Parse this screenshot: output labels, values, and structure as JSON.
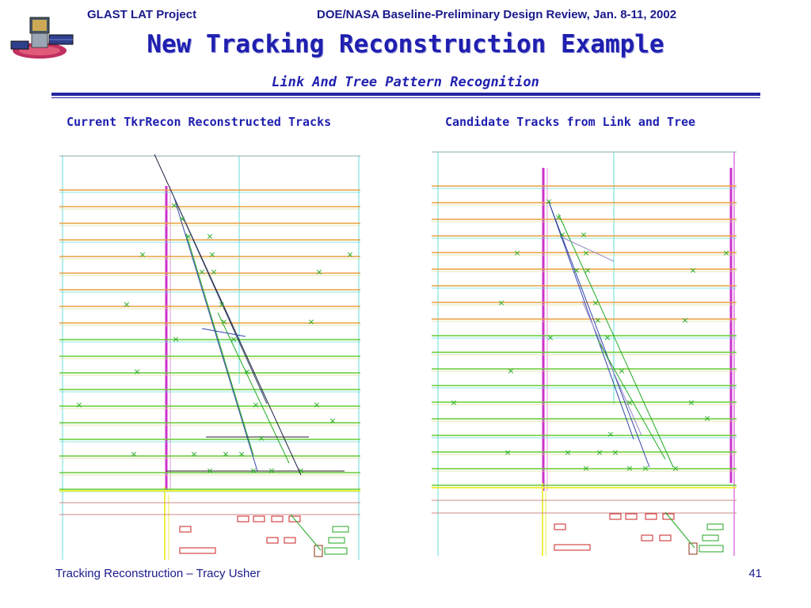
{
  "header": {
    "project": "GLAST LAT Project",
    "review": "DOE/NASA Baseline-Preliminary Design Review, Jan. 8-11, 2002"
  },
  "logo": {
    "icon": "glast-satellite-logo"
  },
  "slide": {
    "title": "New Tracking Reconstruction Example",
    "subtitle": "Link And Tree Pattern Recognition"
  },
  "panels": [
    {
      "caption": "Current TkrRecon Reconstructed Tracks"
    },
    {
      "caption": "Candidate Tracks from Link and Tree"
    }
  ],
  "footer": {
    "text": "Tracking Reconstruction – Tracy Usher",
    "page_number": "41"
  },
  "colors": {
    "text_blue": "#1a1a8c",
    "title_blue": "#1f1fb0",
    "layer_orange": "#e8a040",
    "layer_green": "#66cc33",
    "magenta": "#cc33cc",
    "cyan": "#66dddd",
    "yellow": "#eeee44",
    "hit_green": "#22aa22",
    "track_dark": "#333355"
  }
}
